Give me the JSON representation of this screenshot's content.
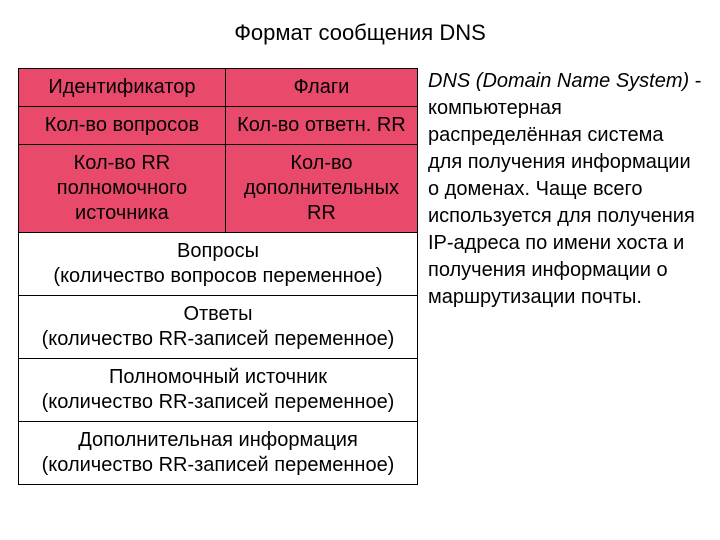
{
  "title": "Формат сообщения DNS",
  "table": {
    "row1": {
      "c1": "Идентификатор",
      "c2": "Флаги"
    },
    "row2": {
      "c1": "Кол-во вопросов",
      "c2": "Кол-во ответн. RR"
    },
    "row3": {
      "c1": "Кол-во RR полномочного источника",
      "c2": "Кол-во дополнительных RR"
    },
    "row4": "Вопросы\n(количество вопросов переменное)",
    "row5": "Ответы\n(количество RR-записей переменное)",
    "row6": "Полномочный источник\n(количество RR-записей переменное)",
    "row7": "Дополнительная информация\n(количество RR-записей переменное)"
  },
  "sidebar": {
    "dns_abbrev": "DNS",
    "dns_full": " (Domain Name System)",
    "rest": " - компьютерная распределённая система для получения информации о доменах. Чаще всего используется для получения IP-адреса по имени хоста и получения информации о маршрутизации почты."
  },
  "colors": {
    "pink": "#e94a6b",
    "white": "#ffffff",
    "text": "#000000",
    "border": "#000000"
  },
  "fonts": {
    "family": "Arial",
    "title_size": 22,
    "cell_size": 20,
    "sidebar_size": 20
  }
}
